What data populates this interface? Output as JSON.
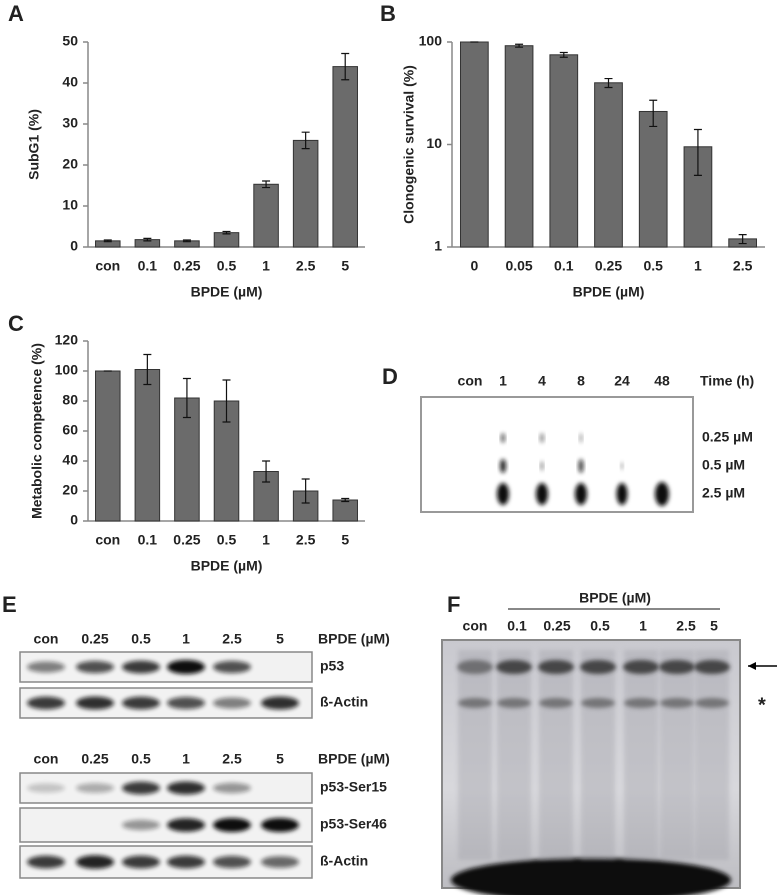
{
  "chart_data": [
    {
      "type": "bar",
      "label": "A",
      "ylabel": "SubG1 (%)",
      "xlabel": "BPDE (µM)",
      "categories": [
        "con",
        "0.1",
        "0.25",
        "0.5",
        "1",
        "2.5",
        "5"
      ],
      "values": [
        1.5,
        1.8,
        1.5,
        3.5,
        15.3,
        26,
        44
      ],
      "errors": [
        0.2,
        0.3,
        0.2,
        0.3,
        0.8,
        2,
        3.2
      ],
      "color": "#6b6b6b",
      "ylim": [
        0,
        50
      ],
      "yticks": [
        0,
        10,
        20,
        30,
        40,
        50
      ],
      "log_scale": false
    },
    {
      "type": "bar",
      "label": "B",
      "ylabel": "Clonogenic survival (%)",
      "xlabel": "BPDE (µM)",
      "categories": [
        "0",
        "0.05",
        "0.1",
        "0.25",
        "0.5",
        "1",
        "2.5"
      ],
      "values": [
        100,
        92,
        75,
        40,
        21,
        9.5,
        1.2
      ],
      "errors": [
        0,
        3,
        4,
        4,
        6,
        4.5,
        0.12
      ],
      "color": "#6b6b6b",
      "ylim": [
        1,
        100
      ],
      "yticks": [
        1,
        10,
        100
      ],
      "log_scale": true
    },
    {
      "type": "bar",
      "label": "C",
      "ylabel": "Metabolic competence (%)",
      "xlabel": "BPDE (µM)",
      "categories": [
        "con",
        "0.1",
        "0.25",
        "0.5",
        "1",
        "2.5",
        "5"
      ],
      "values": [
        100,
        101,
        82,
        80,
        33,
        20,
        14
      ],
      "errors": [
        0,
        10,
        13,
        14,
        7,
        8,
        1
      ],
      "color": "#6b6b6b",
      "ylim": [
        0,
        120
      ],
      "yticks": [
        0,
        20,
        40,
        60,
        80,
        100,
        120
      ],
      "log_scale": false
    }
  ],
  "panel_d": {
    "label": "D",
    "lanes": [
      "con",
      "1",
      "4",
      "8",
      "24",
      "48"
    ],
    "time_label": "Time (h)",
    "rows": [
      "0.25 µM",
      "0.5 µM",
      "2.5 µM"
    ]
  },
  "panel_e": {
    "label": "E",
    "blots": [
      {
        "lanes": [
          "con",
          "0.25",
          "0.5",
          "1",
          "2.5",
          "5"
        ],
        "treatment_label": "BPDE (µM)",
        "bands": [
          "p53",
          "ß-Actin"
        ]
      },
      {
        "lanes": [
          "con",
          "0.25",
          "0.5",
          "1",
          "2.5",
          "5"
        ],
        "treatment_label": "BPDE (µM)",
        "bands": [
          "p53-Ser15",
          "p53-Ser46",
          "ß-Actin"
        ]
      }
    ]
  },
  "panel_f": {
    "label": "F",
    "treatment_label": "BPDE (µM)",
    "lanes": [
      "con",
      "0.1",
      "0.25",
      "0.5",
      "1",
      "2.5",
      "5"
    ],
    "marker": "*"
  }
}
